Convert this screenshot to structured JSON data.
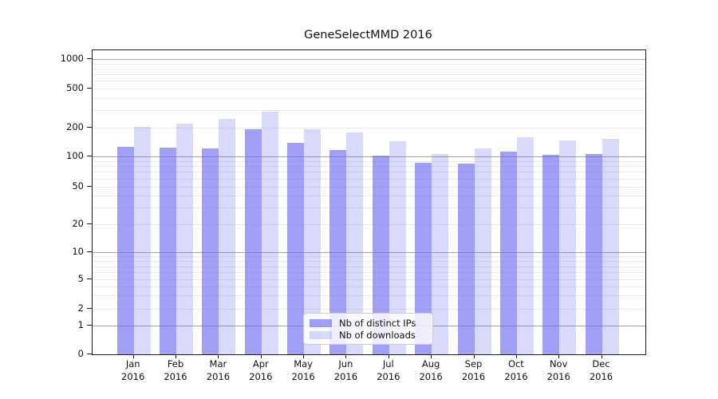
{
  "chart_data": {
    "type": "bar",
    "title": "GeneSelectMMD 2016",
    "x_months": [
      "Jan",
      "Feb",
      "Mar",
      "Apr",
      "May",
      "Jun",
      "Jul",
      "Aug",
      "Sep",
      "Oct",
      "Nov",
      "Dec"
    ],
    "x_year": "2016",
    "categories": [
      "Jan 2016",
      "Feb 2016",
      "Mar 2016",
      "Apr 2016",
      "May 2016",
      "Jun 2016",
      "Jul 2016",
      "Aug 2016",
      "Sep 2016",
      "Oct 2016",
      "Nov 2016",
      "Dec 2016"
    ],
    "series": [
      {
        "name": "Nb of distinct IPs",
        "color": "rgba(102,102,242,0.62)",
        "values": [
          126,
          123,
          121,
          193,
          139,
          117,
          103,
          87,
          85,
          112,
          105,
          107
        ]
      },
      {
        "name": "Nb of downloads",
        "color": "rgba(102,102,242,0.25)",
        "values": [
          202,
          218,
          245,
          292,
          190,
          177,
          144,
          106,
          122,
          157,
          148,
          151
        ]
      }
    ],
    "yscale": "symlog",
    "ylim": [
      0,
      1200
    ],
    "ytick_labels": [
      "1000",
      "500",
      "200",
      "100",
      "50",
      "20",
      "10",
      "5",
      "2",
      "1",
      "0"
    ],
    "grid": {
      "which": "both",
      "major_color": "#a2a2a2",
      "minor_color": "#eaeaea"
    },
    "legend_position": "lower-center-inside"
  }
}
